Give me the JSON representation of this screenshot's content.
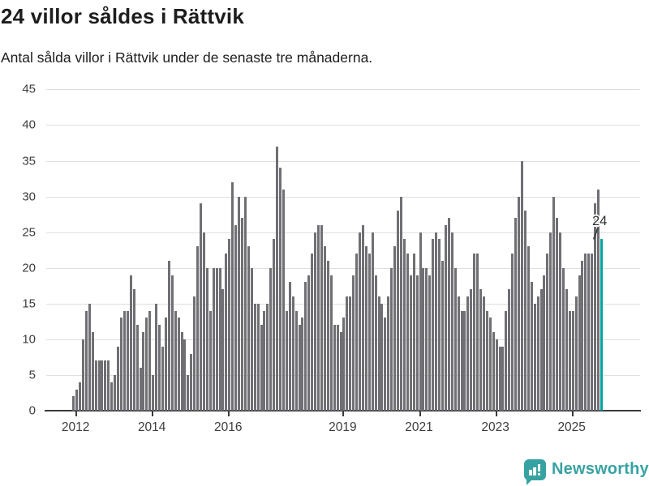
{
  "header": {
    "title": "24 villor såldes i Rättvik",
    "subtitle": "Antal sålda villor i Rättvik under de senaste tre månaderna."
  },
  "chart_data": {
    "type": "bar",
    "title": "24 villor såldes i Rättvik",
    "subtitle": "Antal sålda villor i Rättvik under de senaste tre månaderna.",
    "ylabel": "",
    "xlabel": "",
    "ylim": [
      0,
      45
    ],
    "grid": true,
    "legend": false,
    "frequency": "monthly",
    "start_month": "2011-12",
    "end_month": "2025-10",
    "values": [
      2,
      3,
      4,
      10,
      14,
      15,
      11,
      7,
      7,
      7,
      7,
      7,
      4,
      5,
      9,
      13,
      14,
      14,
      19,
      17,
      12,
      6,
      11,
      13,
      14,
      5,
      15,
      12,
      9,
      13,
      21,
      19,
      14,
      13,
      11,
      10,
      5,
      8,
      16,
      23,
      29,
      25,
      20,
      14,
      20,
      20,
      20,
      17,
      22,
      24,
      32,
      26,
      30,
      27,
      30,
      23,
      20,
      15,
      15,
      12,
      14,
      15,
      20,
      24,
      37,
      34,
      31,
      14,
      18,
      16,
      14,
      12,
      13,
      18,
      19,
      22,
      25,
      26,
      26,
      23,
      21,
      19,
      12,
      12,
      11,
      13,
      16,
      16,
      19,
      22,
      25,
      26,
      23,
      22,
      25,
      19,
      16,
      15,
      13,
      16,
      20,
      23,
      28,
      30,
      24,
      22,
      19,
      22,
      19,
      25,
      20,
      20,
      19,
      24,
      25,
      24,
      21,
      26,
      27,
      25,
      20,
      16,
      14,
      14,
      16,
      17,
      22,
      22,
      17,
      16,
      14,
      13,
      11,
      10,
      9,
      9,
      14,
      17,
      22,
      27,
      30,
      35,
      28,
      23,
      18,
      15,
      16,
      17,
      19,
      22,
      25,
      30,
      27,
      25,
      20,
      17,
      14,
      14,
      16,
      19,
      21,
      22,
      22,
      22,
      29,
      31,
      24
    ],
    "yticks": [
      0,
      5,
      10,
      15,
      20,
      25,
      30,
      35,
      40,
      45
    ],
    "xticks": [
      {
        "label": "2012",
        "month_index": 1
      },
      {
        "label": "2014",
        "month_index": 25
      },
      {
        "label": "2016",
        "month_index": 49
      },
      {
        "label": "2019",
        "month_index": 85
      },
      {
        "label": "2021",
        "month_index": 109
      },
      {
        "label": "2023",
        "month_index": 133
      },
      {
        "label": "2025",
        "month_index": 157
      }
    ],
    "bar_color": "#6f6f74",
    "highlight": {
      "index": 166,
      "value": 24,
      "label": "24",
      "color": "#00a49c"
    }
  },
  "footer": {
    "brand": "Newsworthy",
    "brand_color": "#37a2a2",
    "brand_icon": "bar-chart-speech-bubble-icon"
  }
}
